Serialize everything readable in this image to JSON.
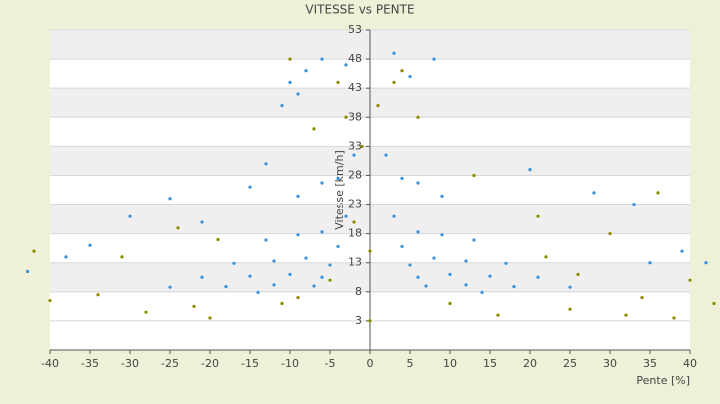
{
  "chart_data": {
    "type": "scatter",
    "title": "VITESSE vs PENTE",
    "x_label": "Pente [%]",
    "y_label": "Vitesse [km/h]",
    "xlim": [
      -40,
      40
    ],
    "xticks": [
      -40,
      -35,
      -30,
      -25,
      -20,
      -15,
      -10,
      -5,
      0,
      5,
      10,
      15,
      20,
      25,
      30,
      35,
      40
    ],
    "ylim": [
      -2,
      53
    ],
    "yticks": [
      3,
      8,
      13,
      18,
      23,
      28,
      33,
      38,
      43,
      48,
      53
    ],
    "grid": true,
    "series": [
      {
        "color": "#3a8fd6",
        "x": [
          2,
          3,
          4,
          5,
          6,
          7,
          4,
          6,
          8,
          10,
          12,
          14,
          6,
          9,
          12,
          15,
          18,
          9,
          13,
          17,
          21,
          25,
          -2,
          -3,
          -4,
          -5,
          -6,
          -7,
          -4,
          -6,
          -8,
          -10,
          -12,
          -14,
          -6,
          -9,
          -12,
          -15,
          -18,
          -9,
          -13,
          -17,
          -21,
          -25,
          -10,
          -8,
          -6,
          -3,
          3,
          5,
          8,
          -11,
          -9,
          -42.8,
          -38,
          -30,
          -25,
          -15,
          -21,
          28,
          33,
          39,
          42,
          35,
          20,
          -35,
          -13
        ],
        "y": [
          31.5,
          21,
          15.8,
          12.6,
          10.5,
          9,
          27.5,
          18.3,
          13.8,
          11,
          9.2,
          7.9,
          26.7,
          17.8,
          13.3,
          10.7,
          8.9,
          24.4,
          16.9,
          12.9,
          10.5,
          8.8,
          31.5,
          21,
          15.8,
          12.6,
          10.5,
          9,
          27.5,
          18.3,
          13.8,
          11,
          9.2,
          7.9,
          26.7,
          17.8,
          13.3,
          10.7,
          8.9,
          24.4,
          16.9,
          12.9,
          10.5,
          8.8,
          44,
          46,
          48,
          47,
          49,
          45,
          48,
          40,
          42,
          11.5,
          14,
          21,
          24,
          26,
          20,
          25,
          23,
          15,
          13,
          13,
          29,
          16,
          30
        ]
      },
      {
        "color": "#8a8a00",
        "x": [
          -40,
          -34,
          -28,
          -22,
          -20,
          -11,
          -9,
          -5,
          -2,
          -1,
          0,
          0,
          1,
          3,
          4,
          6,
          10,
          16,
          22,
          25,
          30,
          32,
          34,
          36,
          38,
          40,
          -42,
          43,
          -31,
          -24,
          -19,
          -10,
          -7,
          26,
          21,
          13,
          -4,
          -3
        ],
        "y": [
          6.5,
          7.5,
          4.5,
          5.5,
          3.5,
          6,
          7,
          10,
          20,
          33,
          15,
          3,
          40,
          44,
          46,
          38,
          6,
          4,
          14,
          5,
          18,
          4,
          7,
          25,
          3.5,
          10,
          15,
          6,
          14,
          19,
          17,
          48,
          36,
          11,
          21,
          28,
          44,
          38
        ]
      }
    ]
  }
}
